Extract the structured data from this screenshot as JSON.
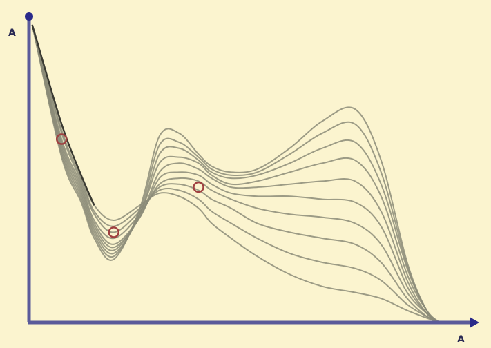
{
  "chart_data": {
    "type": "line",
    "title": "",
    "xlabel": "A",
    "ylabel": "A",
    "grid": false,
    "legend": "none",
    "colors": {
      "background": "#fbf4cf",
      "axis": "#5a5a9a",
      "axis_tip": "#2a2a8a",
      "curve": "#8b8b78",
      "curve_dark": "#3a3a32",
      "crossing_marker": "#a04040"
    },
    "x": [
      0.05,
      0.5,
      0.8,
      1.0,
      1.3,
      1.7,
      2.0,
      2.3,
      2.6,
      2.8,
      3.1,
      3.5,
      4.0,
      4.5,
      5.0,
      5.4,
      5.8,
      6.1,
      6.3
    ],
    "series": [
      {
        "values": [
          9.9,
          6.6,
          4.9,
          3.9,
          3.4,
          3.9,
          4.3,
          4.2,
          3.8,
          3.3,
          2.8,
          2.2,
          1.6,
          1.2,
          1.0,
          0.8,
          0.4,
          0.15,
          0.0
        ]
      },
      {
        "values": [
          9.9,
          6.4,
          4.8,
          3.7,
          3.2,
          3.8,
          4.4,
          4.4,
          4.1,
          3.7,
          3.3,
          2.8,
          2.3,
          2.0,
          1.8,
          1.4,
          0.6,
          0.2,
          0.0
        ]
      },
      {
        "values": [
          9.9,
          6.3,
          4.7,
          3.6,
          3.0,
          3.7,
          4.5,
          4.6,
          4.4,
          4.1,
          3.8,
          3.3,
          3.0,
          2.8,
          2.6,
          2.0,
          0.8,
          0.2,
          0.0
        ]
      },
      {
        "values": [
          9.9,
          6.1,
          4.6,
          3.4,
          2.8,
          3.6,
          4.6,
          4.8,
          4.7,
          4.4,
          4.1,
          3.8,
          3.6,
          3.5,
          3.3,
          2.6,
          1.0,
          0.3,
          0.0
        ]
      },
      {
        "values": [
          9.9,
          6.0,
          4.5,
          3.3,
          2.6,
          3.5,
          4.8,
          5.0,
          4.9,
          4.6,
          4.3,
          4.2,
          4.2,
          4.1,
          4.0,
          3.2,
          1.2,
          0.3,
          0.0
        ]
      },
      {
        "values": [
          9.9,
          5.9,
          4.4,
          3.2,
          2.5,
          3.5,
          5.0,
          5.3,
          5.1,
          4.8,
          4.5,
          4.5,
          4.6,
          4.7,
          4.7,
          3.7,
          1.4,
          0.3,
          0.0
        ]
      },
      {
        "values": [
          9.9,
          5.8,
          4.3,
          3.1,
          2.4,
          3.6,
          5.3,
          5.5,
          5.3,
          4.9,
          4.6,
          4.7,
          5.0,
          5.3,
          5.4,
          4.2,
          1.6,
          0.4,
          0.0
        ]
      },
      {
        "values": [
          9.9,
          5.7,
          4.2,
          3.0,
          2.3,
          3.6,
          5.6,
          5.8,
          5.4,
          5.0,
          4.8,
          4.9,
          5.3,
          5.8,
          6.0,
          4.6,
          1.8,
          0.4,
          0.0
        ]
      },
      {
        "values": [
          9.9,
          5.6,
          4.1,
          2.9,
          2.2,
          3.7,
          5.9,
          6.0,
          5.5,
          5.1,
          4.9,
          5.0,
          5.6,
          6.3,
          6.6,
          5.0,
          1.9,
          0.4,
          0.0
        ]
      },
      {
        "values": [
          9.9,
          5.5,
          4.0,
          2.8,
          2.1,
          3.8,
          6.2,
          6.3,
          5.6,
          5.2,
          5.0,
          5.1,
          5.8,
          6.7,
          7.1,
          5.4,
          2.0,
          0.4,
          0.0
        ]
      }
    ],
    "crossing_points": [
      {
        "x": 0.5,
        "y": 6.1
      },
      {
        "x": 1.3,
        "y": 3.0
      },
      {
        "x": 2.6,
        "y": 4.5
      }
    ],
    "xlim": [
      0,
      6.8
    ],
    "ylim": [
      0,
      10.5
    ]
  }
}
